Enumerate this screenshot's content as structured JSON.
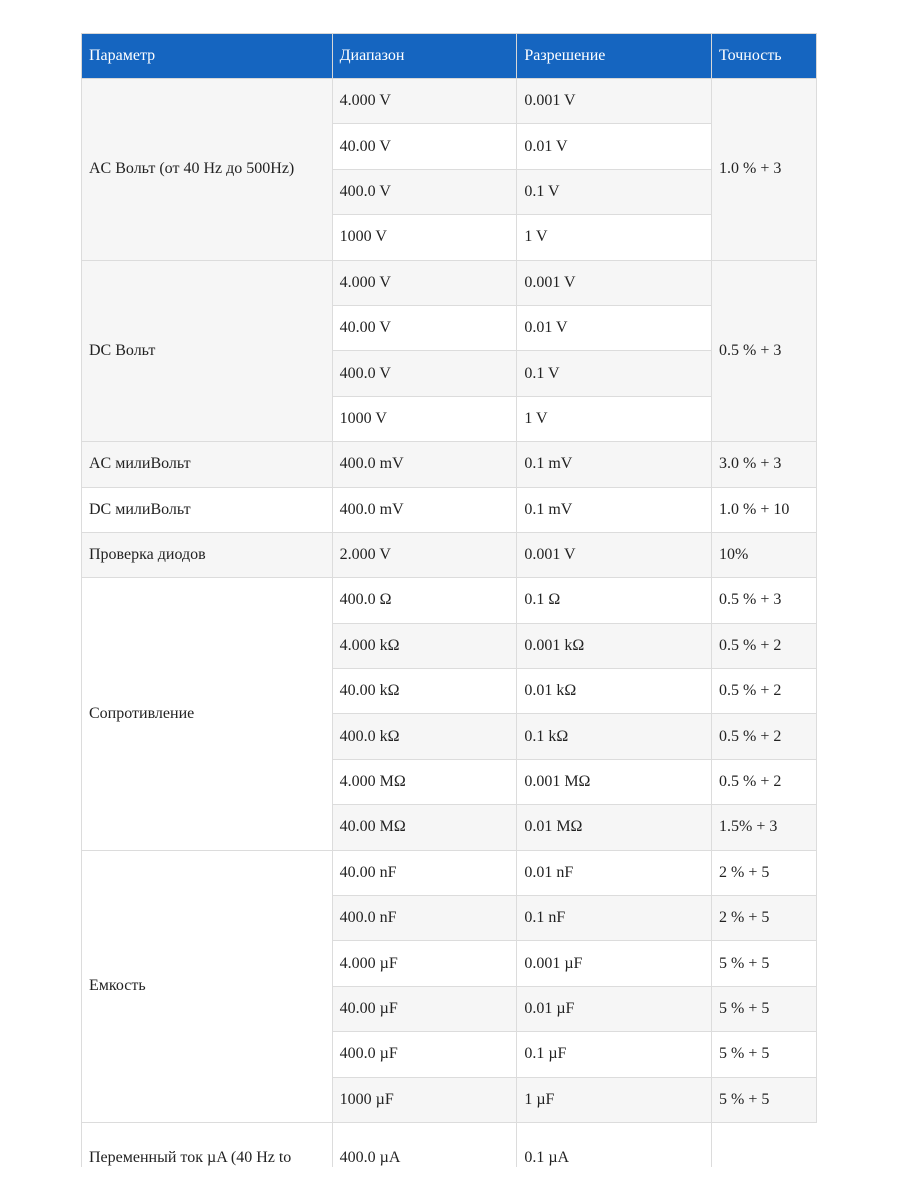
{
  "table": {
    "header": [
      "Параметр",
      "Диапазон",
      "Разрешение",
      "Точность"
    ],
    "groups": [
      {
        "parameter": "AC Вольт (от 40 Hz до 500Hz)",
        "accuracy": "1.0 % + 3",
        "rows": [
          [
            "4.000 V",
            "0.001 V"
          ],
          [
            "40.00 V",
            "0.01 V"
          ],
          [
            "400.0 V",
            "0.1 V"
          ],
          [
            "1000 V",
            "1 V"
          ]
        ]
      },
      {
        "parameter": "DC Вольт",
        "accuracy": "0.5 % + 3",
        "rows": [
          [
            "4.000 V",
            "0.001 V"
          ],
          [
            "40.00 V",
            "0.01 V"
          ],
          [
            "400.0 V",
            "0.1 V"
          ],
          [
            "1000 V",
            "1 V"
          ]
        ]
      },
      {
        "parameter": "AC милиВольт",
        "rows": [
          [
            "400.0 mV",
            "0.1 mV",
            "3.0 % + 3"
          ]
        ]
      },
      {
        "parameter": "DC милиВольт",
        "rows": [
          [
            "400.0 mV",
            "0.1 mV",
            "1.0 % + 10"
          ]
        ]
      },
      {
        "parameter": "Проверка диодов",
        "rows": [
          [
            "2.000 V",
            "0.001 V",
            "10%"
          ]
        ]
      },
      {
        "parameter": "Сопротивление",
        "rows": [
          [
            "400.0 Ω",
            "0.1 Ω",
            "0.5 % + 3"
          ],
          [
            "4.000 kΩ",
            "0.001 kΩ",
            "0.5 % + 2"
          ],
          [
            "40.00 kΩ",
            "0.01 kΩ",
            "0.5 % + 2"
          ],
          [
            "400.0 kΩ",
            "0.1 kΩ",
            "0.5 % + 2"
          ],
          [
            "4.000 MΩ",
            "0.001 MΩ",
            "0.5 % + 2"
          ],
          [
            "40.00 MΩ",
            "0.01 MΩ",
            "1.5% + 3"
          ]
        ]
      },
      {
        "parameter": "Емкость",
        "rows": [
          [
            "40.00 nF",
            "0.01 nF",
            "2 % + 5"
          ],
          [
            "400.0 nF",
            "0.1 nF",
            "2 % + 5"
          ],
          [
            "4.000 µF",
            "0.001 µF",
            "5 % + 5"
          ],
          [
            "40.00 µF",
            "0.01 µF",
            "5 % + 5"
          ],
          [
            "400.0 µF",
            "0.1 µF",
            "5 % + 5"
          ],
          [
            "1000 µF",
            "1 µF",
            "5 % + 5"
          ]
        ]
      },
      {
        "parameter": "Переменный ток µA (40 Hz to",
        "open": true,
        "rows": [
          [
            "400.0 µA",
            "0.1 µA"
          ]
        ]
      }
    ]
  }
}
